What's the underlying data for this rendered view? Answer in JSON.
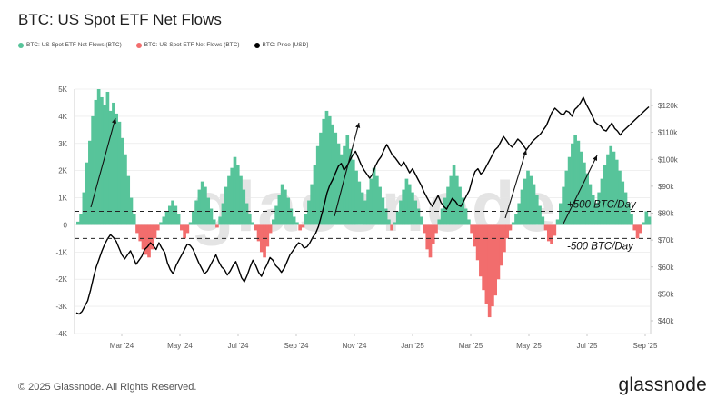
{
  "title": "BTC: US Spot ETF Net Flows",
  "watermark": "glassnode",
  "footer": "© 2025 Glassnode. All Rights Reserved.",
  "brand": "glassnode",
  "colors": {
    "inflow": "#57c49a",
    "outflow": "#f26d6d",
    "price": "#000000",
    "grid": "#e6e6e6",
    "axis": "#555555"
  },
  "chart_data": {
    "type": "bar",
    "x_ticks": [
      "Mar '24",
      "May '24",
      "Jul '24",
      "Sep '24",
      "Nov '24",
      "Jan '25",
      "Mar '25",
      "May '25",
      "Jul '25",
      "Sep '25"
    ],
    "y_left_ticks": [
      "5K",
      "4K",
      "3K",
      "2K",
      "1K",
      "0",
      "-1K",
      "-2K",
      "-3K",
      "-4K"
    ],
    "y_right_ticks": [
      "$120k",
      "$110k",
      "$100k",
      "$90k",
      "$80k",
      "$70k",
      "$60k",
      "$50k",
      "$40k"
    ],
    "ylim_left": [
      -4000,
      5000
    ],
    "ylim_right": [
      40000,
      120000
    ],
    "legend": [
      {
        "label": "BTC: US Spot ETF Net Flows (BTC)",
        "color": "#57c49a"
      },
      {
        "label": "BTC: US Spot ETF Net Flows (BTC)",
        "color": "#f26d6d"
      },
      {
        "label": "BTC: Price [USD]",
        "color": "#000000"
      }
    ],
    "annotations": [
      {
        "text": "+500 BTC/Day",
        "y": 500
      },
      {
        "text": "-500 BTC/Day",
        "y": -500
      }
    ],
    "series": [
      {
        "name": "BTC: US Spot ETF Net Flows (BTC)",
        "values": [
          120,
          400,
          1200,
          2300,
          3100,
          4000,
          4600,
          5000,
          4700,
          4400,
          4900,
          4200,
          4500,
          4100,
          3800,
          3200,
          2600,
          1800,
          1000,
          400,
          -300,
          -600,
          -900,
          -1100,
          -1200,
          -900,
          -500,
          -200,
          100,
          300,
          500,
          700,
          900,
          700,
          400,
          -200,
          -500,
          -300,
          100,
          500,
          900,
          1300,
          1600,
          1400,
          1000,
          600,
          200,
          -100,
          300,
          800,
          1400,
          1800,
          2100,
          2500,
          2200,
          1800,
          1300,
          800,
          400,
          100,
          -200,
          -600,
          -1000,
          -1200,
          -800,
          -300,
          200,
          700,
          1100,
          1500,
          1300,
          1000,
          600,
          300,
          100,
          -200,
          -100,
          400,
          900,
          1500,
          2200,
          2900,
          3400,
          3900,
          4200,
          4000,
          3700,
          3400,
          3000,
          2600,
          2900,
          3300,
          2800,
          2400,
          2000,
          1600,
          1200,
          900,
          1300,
          1700,
          2100,
          1800,
          1400,
          1000,
          600,
          200,
          -200,
          100,
          500,
          900,
          1300,
          1700,
          1500,
          1200,
          900,
          600,
          300,
          -300,
          -900,
          -1200,
          -700,
          -300,
          200,
          600,
          1000,
          1400,
          1800,
          2200,
          1800,
          1400,
          1000,
          600,
          200,
          -300,
          -800,
          -1300,
          -1900,
          -2400,
          -2900,
          -3400,
          -3000,
          -2600,
          -2000,
          -1500,
          -1000,
          -500,
          -200,
          100,
          400,
          800,
          1300,
          1700,
          2000,
          1800,
          1500,
          1100,
          700,
          300,
          -200,
          -600,
          -700,
          -400,
          200,
          800,
          1400,
          2000,
          2500,
          3000,
          3300,
          3100,
          2700,
          2300,
          1900,
          1500,
          1100,
          800,
          1200,
          1700,
          2200,
          2600,
          2900,
          2700,
          2400,
          2000,
          1600,
          1200,
          800,
          400,
          -200,
          -500,
          -300,
          100,
          500,
          300
        ]
      },
      {
        "name": "BTC: Price [USD]",
        "values": [
          43000,
          42500,
          43500,
          45500,
          47500,
          51500,
          56000,
          60000,
          63000,
          66000,
          68500,
          70500,
          72000,
          71000,
          69500,
          67000,
          64500,
          63000,
          64500,
          66000,
          63500,
          61000,
          62500,
          64000,
          66500,
          67500,
          69000,
          68000,
          66500,
          69000,
          67000,
          65500,
          61500,
          59000,
          57500,
          60500,
          62500,
          64500,
          66500,
          68500,
          68000,
          66500,
          64000,
          61500,
          59500,
          57500,
          58500,
          60500,
          62500,
          64500,
          62000,
          60000,
          59000,
          57000,
          58500,
          60500,
          62000,
          59000,
          56000,
          54500,
          57000,
          60000,
          62500,
          60500,
          58000,
          56500,
          59000,
          61000,
          63500,
          62500,
          60500,
          59500,
          58000,
          59500,
          62000,
          64500,
          66000,
          67500,
          69000,
          68500,
          67000,
          67500,
          69000,
          71000,
          72500,
          75000,
          79000,
          83000,
          87500,
          90500,
          92500,
          95000,
          97500,
          98500,
          96000,
          97500,
          99500,
          101500,
          103000,
          100500,
          98000,
          96000,
          94500,
          93000,
          94500,
          97500,
          99500,
          101000,
          103500,
          105500,
          103500,
          101500,
          100500,
          99000,
          97500,
          99000,
          97000,
          95000,
          96500,
          94500,
          92500,
          90500,
          88000,
          86000,
          84000,
          82500,
          84500,
          86500,
          84000,
          82500,
          81500,
          83500,
          85500,
          84500,
          83000,
          82500,
          84500,
          86500,
          88500,
          92500,
          95500,
          96500,
          94500,
          95500,
          97500,
          99500,
          101500,
          103500,
          104500,
          106500,
          108500,
          107000,
          105500,
          104500,
          106000,
          107500,
          106500,
          105000,
          103500,
          105000,
          106500,
          107500,
          108500,
          109500,
          111000,
          112500,
          115000,
          117500,
          119000,
          118000,
          117000,
          116500,
          118000,
          117500,
          116000,
          118500,
          119500,
          121000,
          123000,
          120500,
          118500,
          116500,
          114000,
          113000,
          112500,
          111000,
          110500,
          112000,
          113500,
          111500,
          110500,
          109000,
          110500,
          111500,
          112500,
          113500,
          114500,
          115500,
          116500,
          117500,
          118500,
          119500
        ]
      }
    ]
  }
}
